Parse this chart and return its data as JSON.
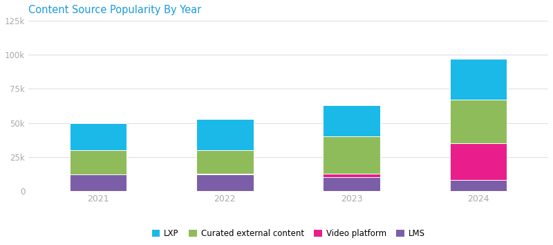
{
  "title": "Content Source Popularity By Year",
  "title_color": "#1a9bdc",
  "categories": [
    "2021",
    "2022",
    "2023",
    "2024"
  ],
  "series": [
    {
      "name": "LMS",
      "color": "#7b5ea7",
      "values": [
        12000,
        12000,
        10000,
        8000
      ]
    },
    {
      "name": "Video platform",
      "color": "#e91e8c",
      "values": [
        0,
        1000,
        3000,
        27000
      ]
    },
    {
      "name": "Curated external content",
      "color": "#8fbc5a",
      "values": [
        18000,
        17000,
        27000,
        32000
      ]
    },
    {
      "name": "LXP",
      "color": "#1ab9e8",
      "values": [
        20000,
        23000,
        23000,
        30000
      ]
    }
  ],
  "legend_order": [
    "LXP",
    "Curated external content",
    "Video platform",
    "LMS"
  ],
  "ylim": [
    0,
    125000
  ],
  "yticks": [
    0,
    25000,
    50000,
    75000,
    100000,
    125000
  ],
  "ytick_labels": [
    "0",
    "25k",
    "50k",
    "75k",
    "100k",
    "125k"
  ],
  "background_color": "#ffffff",
  "plot_bg_color": "#ffffff",
  "grid_color": "#e0e0e0",
  "bar_width": 0.45,
  "figsize": [
    8.0,
    3.54
  ],
  "dpi": 100
}
